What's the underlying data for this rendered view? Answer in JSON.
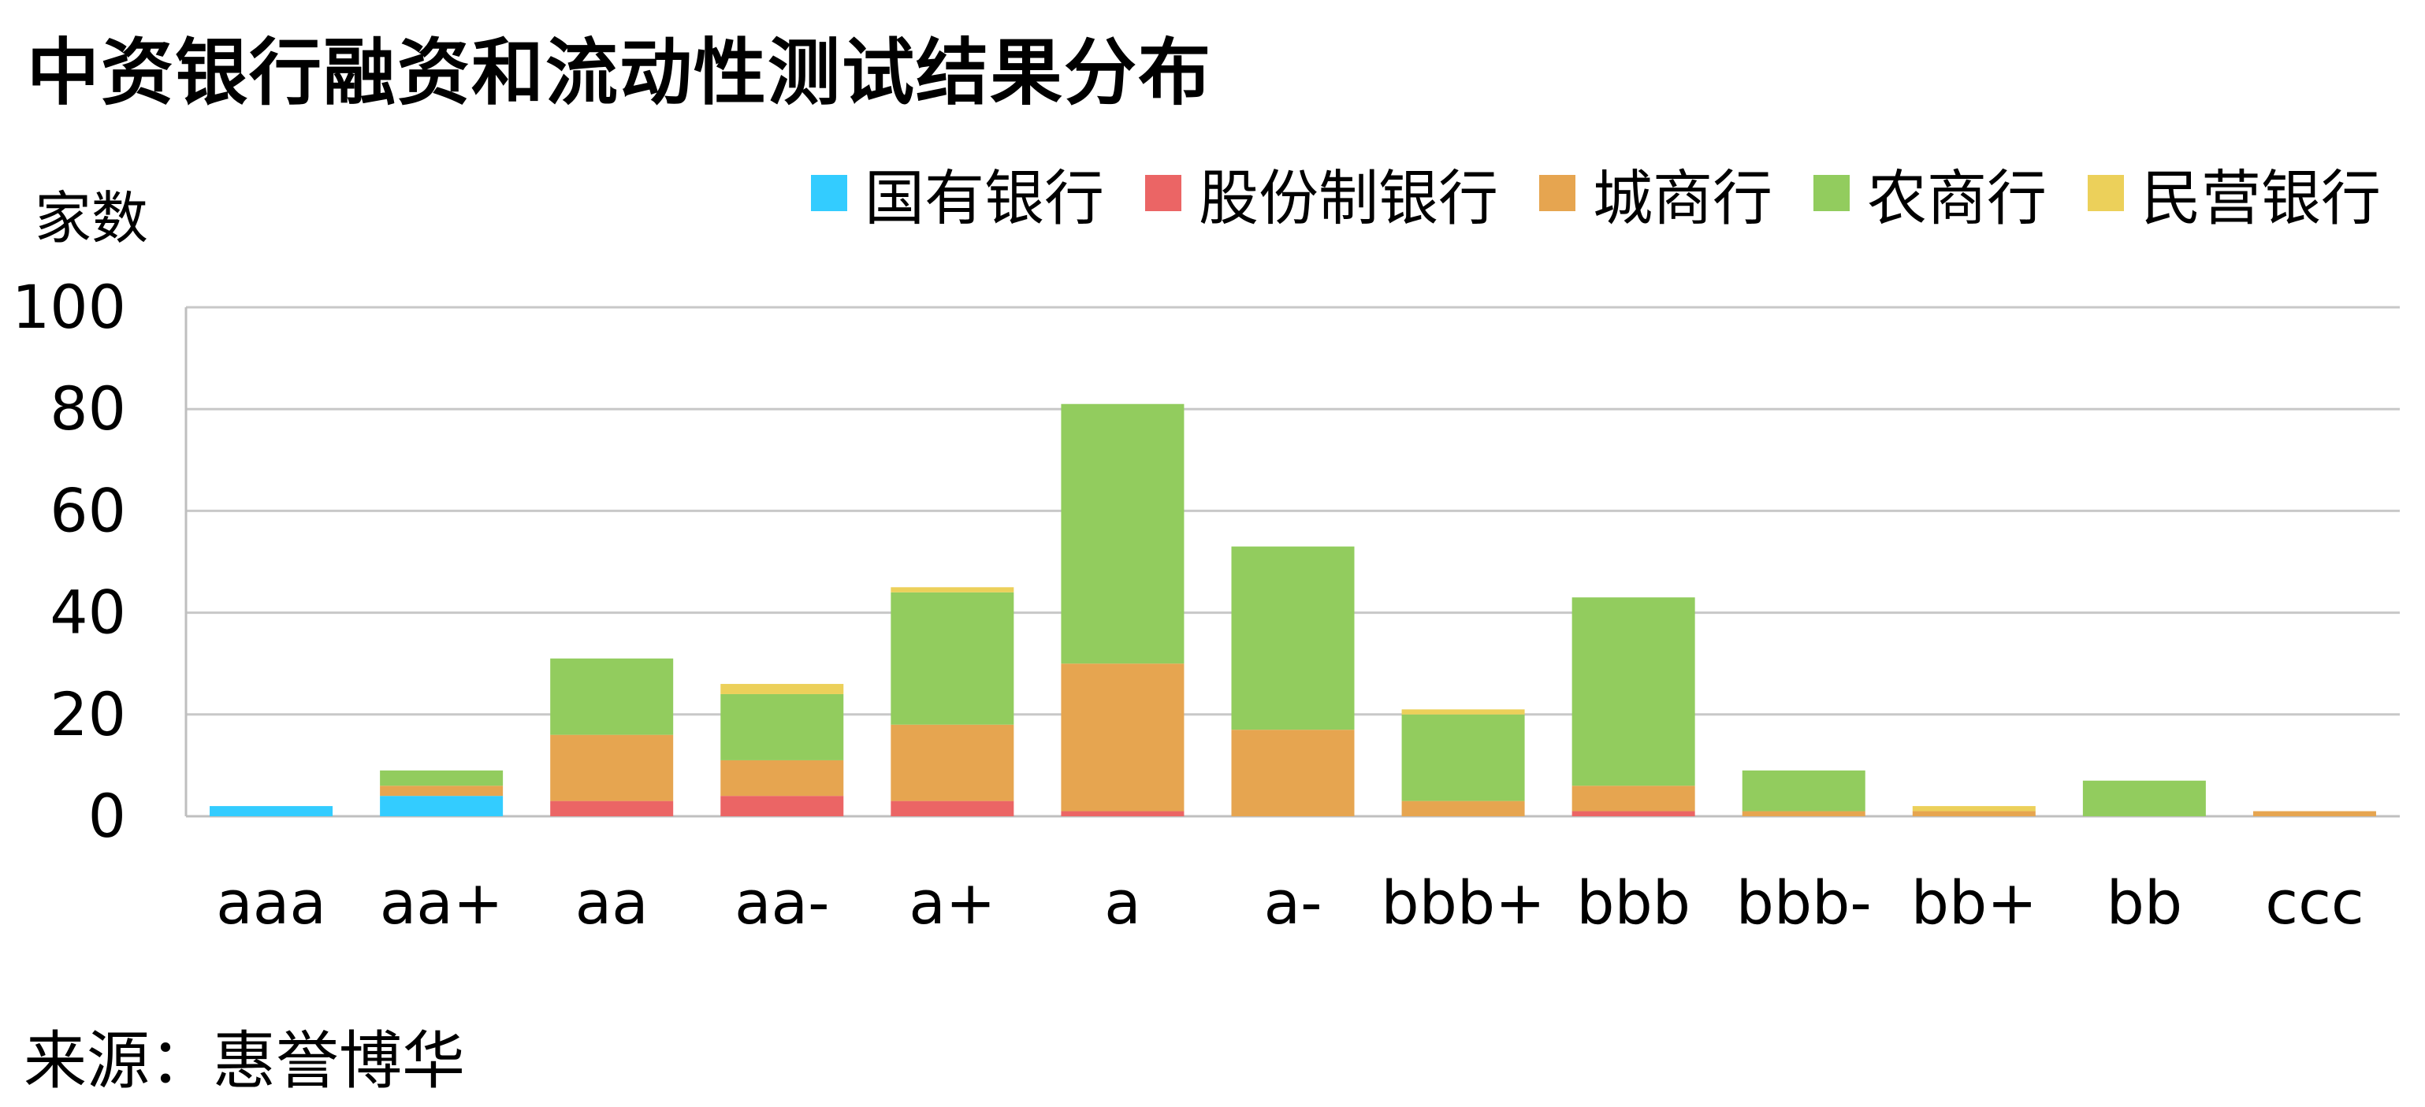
{
  "chart_data": {
    "type": "bar",
    "stacked": true,
    "title": "中资银行融资和流动性测试结果分布",
    "ylabel": "家数",
    "xlabel": "",
    "ylim": [
      0,
      100
    ],
    "yticks": [
      0,
      20,
      40,
      60,
      80,
      100
    ],
    "grid": true,
    "legend_position": "top-right",
    "categories": [
      "aaa",
      "aa+",
      "aa",
      "aa-",
      "a+",
      "a",
      "a-",
      "bbb+",
      "bbb",
      "bbb-",
      "bb+",
      "bb",
      "ccc"
    ],
    "series": [
      {
        "name": "国有银行",
        "color": "#33CCFF",
        "values": [
          2,
          4,
          0,
          0,
          0,
          0,
          0,
          0,
          0,
          0,
          0,
          0,
          0
        ]
      },
      {
        "name": "股份制银行",
        "color": "#EB6565",
        "values": [
          0,
          0,
          3,
          4,
          3,
          1,
          0,
          0,
          1,
          0,
          0,
          0,
          0
        ]
      },
      {
        "name": "城商行",
        "color": "#E6A550",
        "values": [
          0,
          2,
          13,
          7,
          15,
          29,
          17,
          3,
          5,
          1,
          1,
          0,
          1
        ]
      },
      {
        "name": "农商行",
        "color": "#92CC5E",
        "values": [
          0,
          3,
          15,
          13,
          26,
          51,
          36,
          17,
          37,
          8,
          0,
          7,
          0
        ]
      },
      {
        "name": "民营银行",
        "color": "#ECD05A",
        "values": [
          0,
          0,
          0,
          2,
          1,
          0,
          0,
          1,
          0,
          0,
          1,
          0,
          0
        ]
      }
    ]
  },
  "source": "来源：惠誉博华"
}
